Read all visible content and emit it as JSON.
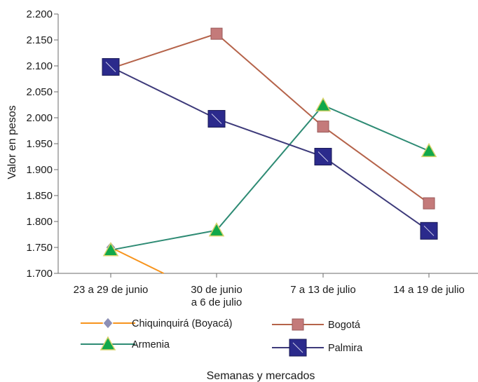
{
  "chart_data": {
    "type": "line",
    "categories": [
      [
        "23 a 29 de junio"
      ],
      [
        "30 de junio",
        "a 6 de julio"
      ],
      [
        "7 a 13 de julio"
      ],
      [
        "14 a 19 de julio"
      ]
    ],
    "xlabel": "Semanas y mercados",
    "ylabel": "Valor en pesos",
    "ylim": [
      1700,
      2200
    ],
    "yticks": [
      1700,
      1750,
      1800,
      1850,
      1900,
      1950,
      2000,
      2050,
      2100,
      2150,
      2200
    ],
    "ytick_labels": [
      "1.700",
      "1.750",
      "1.800",
      "1.850",
      "1.900",
      "1.950",
      "2.000",
      "2.050",
      "2.100",
      "2.150",
      "2.200"
    ],
    "grid": false,
    "legend_placement": "bottom",
    "series": [
      {
        "name": "Chiquinquirá (Boyacá)",
        "color": "#f7941d",
        "marker": "diamond",
        "marker_color": "#8c8fb5",
        "values": [
          1750,
          1650,
          null,
          null
        ]
      },
      {
        "name": "Bogotá",
        "color": "#b5634a",
        "marker": "square",
        "marker_color": "#c47a7a",
        "values": [
          2095,
          2162,
          1983,
          1835
        ]
      },
      {
        "name": "Armenia",
        "color": "#2e8b74",
        "marker": "triangle",
        "marker_color": "#11a84a",
        "values": [
          1745,
          1783,
          2024,
          1936
        ]
      },
      {
        "name": "Palmira",
        "color": "#3d3a7a",
        "marker": "bigsquare",
        "marker_color": "#2b2a8c",
        "values": [
          2098,
          1998,
          1925,
          1782
        ]
      }
    ]
  }
}
